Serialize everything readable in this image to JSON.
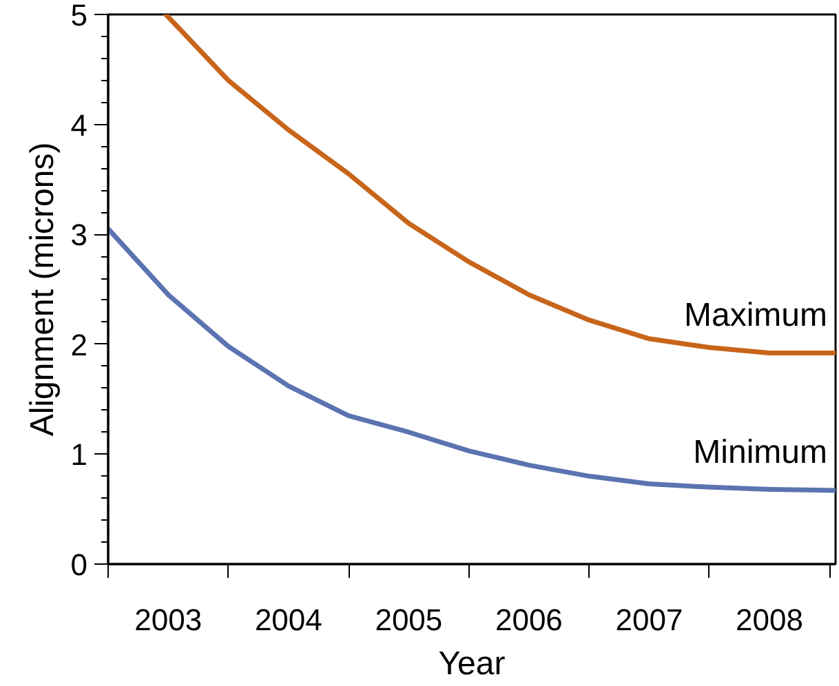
{
  "chart_data": {
    "type": "line",
    "xlabel": "Year",
    "ylabel": "Alignment (microns)",
    "xlim": [
      2002.5,
      2008.55
    ],
    "ylim": [
      0,
      5
    ],
    "xticks": [
      {
        "value": 2002.5,
        "label": null
      },
      {
        "value": 2003,
        "label": "2003"
      },
      {
        "value": 2003.5,
        "label": null
      },
      {
        "value": 2004,
        "label": "2004"
      },
      {
        "value": 2004.5,
        "label": null
      },
      {
        "value": 2005,
        "label": "2005"
      },
      {
        "value": 2005.5,
        "label": null
      },
      {
        "value": 2006,
        "label": "2006"
      },
      {
        "value": 2006.5,
        "label": null
      },
      {
        "value": 2007,
        "label": "2007"
      },
      {
        "value": 2007.5,
        "label": null
      },
      {
        "value": 2008,
        "label": "2008"
      },
      {
        "value": 2008.5,
        "label": null
      }
    ],
    "yticks": [
      0,
      {
        "value": 0.2,
        "label": null
      },
      {
        "value": 0.4,
        "label": null
      },
      {
        "value": 0.6,
        "label": null
      },
      {
        "value": 0.8,
        "label": null
      },
      1,
      {
        "value": 1.2,
        "label": null
      },
      {
        "value": 1.4,
        "label": null
      },
      {
        "value": 1.6,
        "label": null
      },
      {
        "value": 1.8,
        "label": null
      },
      2,
      {
        "value": 2.2,
        "label": null
      },
      {
        "value": 2.4,
        "label": null
      },
      {
        "value": 2.6,
        "label": null
      },
      {
        "value": 2.8,
        "label": null
      },
      3,
      {
        "value": 3.2,
        "label": null
      },
      {
        "value": 3.4,
        "label": null
      },
      {
        "value": 3.6,
        "label": null
      },
      {
        "value": 3.8,
        "label": null
      },
      4,
      {
        "value": 4.2,
        "label": null
      },
      {
        "value": 4.4,
        "label": null
      },
      {
        "value": 4.6,
        "label": null
      },
      {
        "value": 4.8,
        "label": null
      },
      5
    ],
    "grid": false,
    "legend": false,
    "marker": "none",
    "line_style": "solid",
    "series": [
      {
        "name": "Maximum",
        "color": "#c8651b",
        "x": [
          2002.98,
          2003.5,
          2004,
          2004.5,
          2005,
          2005.5,
          2006,
          2006.5,
          2007,
          2007.5,
          2008,
          2008.55
        ],
        "values": [
          5.0,
          4.4,
          3.95,
          3.55,
          3.1,
          2.75,
          2.45,
          2.22,
          2.05,
          1.97,
          1.92,
          1.92
        ]
      },
      {
        "name": "Minimum",
        "color": "#5b73b0",
        "x": [
          2002.5,
          2003,
          2003.5,
          2004,
          2004.5,
          2005,
          2005.5,
          2006,
          2006.5,
          2007,
          2007.5,
          2008,
          2008.55
        ],
        "values": [
          3.05,
          2.45,
          1.98,
          1.62,
          1.35,
          1.2,
          1.03,
          0.9,
          0.8,
          0.73,
          0.7,
          0.68,
          0.67
        ]
      }
    ]
  }
}
